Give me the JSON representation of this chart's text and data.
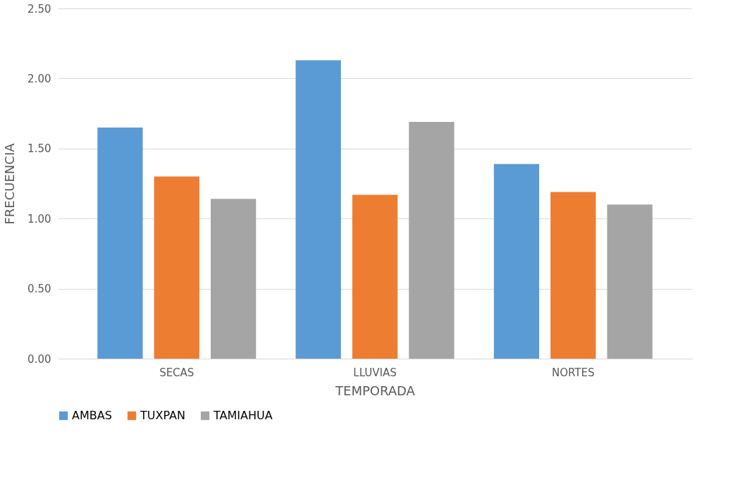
{
  "chart_data": {
    "type": "bar",
    "xlabel": "TEMPORADA",
    "ylabel": "FRECUENCIA",
    "categories": [
      "SECAS",
      "LLUVIAS",
      "NORTES"
    ],
    "series": [
      {
        "name": "AMBAS",
        "color": "#5b9bd5",
        "values": [
          1.65,
          2.13,
          1.39
        ]
      },
      {
        "name": "TUXPAN",
        "color": "#ed7d31",
        "values": [
          1.3,
          1.17,
          1.19
        ]
      },
      {
        "name": "TAMIAHUA",
        "color": "#a5a5a5",
        "values": [
          1.14,
          1.69,
          1.1
        ]
      }
    ],
    "ylim": [
      0,
      2.5
    ],
    "yticks": [
      {
        "value": 0,
        "label": "0.00"
      },
      {
        "value": 0.5,
        "label": "0.50"
      },
      {
        "value": 1,
        "label": "1.00"
      },
      {
        "value": 1.5,
        "label": "1.50"
      },
      {
        "value": 2,
        "label": "2.00"
      },
      {
        "value": 2.5,
        "label": "2.50"
      }
    ],
    "grid": "y",
    "legend": "bottom"
  }
}
